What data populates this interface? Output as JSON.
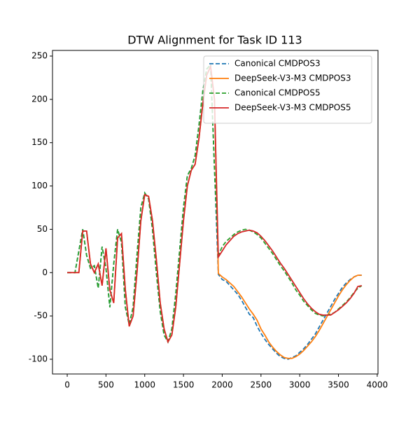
{
  "chart_data": {
    "type": "line",
    "title": "DTW Alignment for Task ID 113",
    "x": [
      0,
      50,
      100,
      150,
      200,
      250,
      300,
      350,
      400,
      450,
      500,
      550,
      600,
      650,
      700,
      750,
      800,
      850,
      900,
      950,
      1000,
      1050,
      1100,
      1150,
      1200,
      1250,
      1300,
      1350,
      1400,
      1450,
      1500,
      1550,
      1600,
      1650,
      1700,
      1750,
      1800,
      1850,
      1900,
      1950,
      2000,
      2050,
      2100,
      2150,
      2200,
      2250,
      2300,
      2350,
      2400,
      2450,
      2500,
      2550,
      2600,
      2650,
      2700,
      2750,
      2800,
      2850,
      2900,
      2950,
      3000,
      3050,
      3100,
      3150,
      3200,
      3250,
      3300,
      3350,
      3400,
      3450,
      3500,
      3550,
      3600,
      3650,
      3700,
      3750,
      3800
    ],
    "series": [
      {
        "name": "Canonical CMDPOS3",
        "color": "#1f77b4",
        "dashed": true,
        "values": [
          0,
          0,
          0,
          25,
          50,
          20,
          5,
          8,
          -18,
          30,
          5,
          -40,
          10,
          50,
          35,
          -40,
          -60,
          -40,
          20,
          75,
          92,
          85,
          50,
          0,
          -45,
          -72,
          -80,
          -65,
          -25,
          25,
          75,
          112,
          120,
          135,
          170,
          210,
          235,
          240,
          120,
          -2,
          -8,
          -10,
          -15,
          -20,
          -25,
          -32,
          -40,
          -48,
          -52,
          -62,
          -70,
          -77,
          -83,
          -88,
          -93,
          -97,
          -99,
          -100,
          -98,
          -96,
          -92,
          -88,
          -83,
          -77,
          -71,
          -63,
          -55,
          -47,
          -39,
          -31,
          -24,
          -17,
          -12,
          -8,
          -5,
          -3,
          -3
        ]
      },
      {
        "name": "DeepSeek-V3-M3 CMDPOS3",
        "color": "#ff7f0e",
        "dashed": false,
        "values": [
          0,
          0,
          0,
          0,
          48,
          48,
          10,
          0,
          10,
          -15,
          28,
          -20,
          -35,
          40,
          45,
          -20,
          -62,
          -50,
          0,
          60,
          90,
          88,
          60,
          15,
          -35,
          -65,
          -80,
          -72,
          -40,
          10,
          60,
          100,
          118,
          125,
          155,
          195,
          228,
          238,
          200,
          -1,
          -5,
          -8,
          -12,
          -16,
          -22,
          -28,
          -35,
          -42,
          -48,
          -55,
          -65,
          -72,
          -80,
          -86,
          -91,
          -95,
          -98,
          -99,
          -99,
          -97,
          -94,
          -90,
          -85,
          -80,
          -74,
          -67,
          -59,
          -51,
          -43,
          -35,
          -27,
          -20,
          -14,
          -9,
          -5,
          -3,
          -3
        ]
      },
      {
        "name": "Canonical CMDPOS5",
        "color": "#2ca02c",
        "dashed": true,
        "values": [
          0,
          0,
          0,
          25,
          50,
          20,
          5,
          8,
          -18,
          30,
          5,
          -40,
          10,
          50,
          35,
          -40,
          -60,
          -40,
          20,
          75,
          92,
          85,
          50,
          0,
          -45,
          -72,
          -80,
          -65,
          -25,
          25,
          75,
          112,
          120,
          135,
          170,
          210,
          235,
          240,
          120,
          20,
          30,
          36,
          40,
          44,
          47,
          49,
          50,
          49,
          47,
          44,
          40,
          34,
          28,
          22,
          15,
          8,
          2,
          -5,
          -12,
          -20,
          -26,
          -33,
          -38,
          -43,
          -47,
          -49,
          -50,
          -49,
          -48,
          -46,
          -42,
          -38,
          -34,
          -29,
          -23,
          -18,
          -15
        ]
      },
      {
        "name": "DeepSeek-V3-M3 CMDPOS5",
        "color": "#d62728",
        "dashed": false,
        "values": [
          0,
          0,
          0,
          0,
          48,
          48,
          10,
          0,
          10,
          -15,
          28,
          -20,
          -35,
          40,
          45,
          -20,
          -62,
          -50,
          0,
          60,
          90,
          88,
          60,
          15,
          -35,
          -65,
          -80,
          -72,
          -40,
          10,
          60,
          100,
          118,
          125,
          155,
          195,
          228,
          238,
          200,
          18,
          25,
          32,
          37,
          42,
          45,
          47,
          48,
          49,
          48,
          46,
          42,
          37,
          31,
          25,
          18,
          11,
          5,
          -2,
          -9,
          -16,
          -23,
          -30,
          -36,
          -41,
          -45,
          -48,
          -49,
          -49,
          -49,
          -46,
          -43,
          -39,
          -35,
          -30,
          -24,
          -16,
          -15
        ]
      }
    ],
    "xlim": [
      -190,
      4010
    ],
    "ylim": [
      -117,
      256.5
    ],
    "xticks": [
      0,
      500,
      1000,
      1500,
      2000,
      2500,
      3000,
      3500,
      4000
    ],
    "yticks": [
      -100,
      -50,
      0,
      50,
      100,
      150,
      200,
      250
    ],
    "legend": "upper right"
  }
}
